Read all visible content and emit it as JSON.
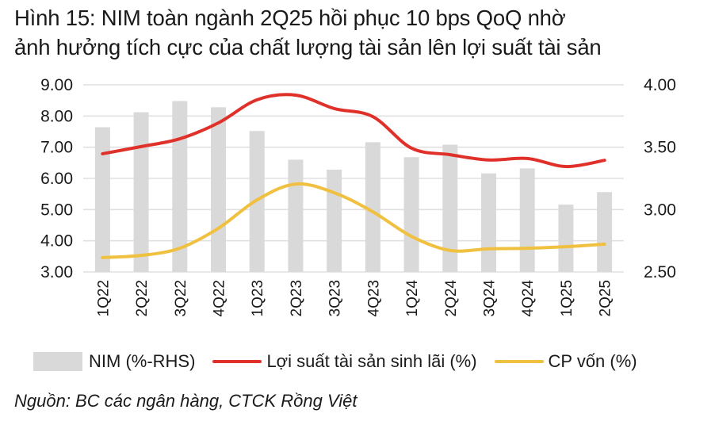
{
  "title": {
    "line1": "Hình 15: NIM toàn ngành 2Q25 hồi phục 10 bps QoQ nhờ",
    "line2": "ảnh hưởng tích cực của chất lượng tài sản lên lợi suất tài sản"
  },
  "legend": {
    "nim": "NIM (%-RHS)",
    "yield": "Lợi suất tài sản sinh lãi (%)",
    "cof": "CP vốn (%)"
  },
  "source": "Nguồn: BC các ngân hàng, CTCK Rồng Việt",
  "colors": {
    "bar": "#d9d9d9",
    "yield_line": "#e0302a",
    "cof_line": "#f0c040",
    "grid": "#e0e0e0"
  },
  "chart_data": {
    "type": "bar",
    "title": "Hình 15: NIM toàn ngành 2Q25 hồi phục 10 bps QoQ nhờ ảnh hưởng tích cực của chất lượng tài sản lên lợi suất tài sản",
    "categories": [
      "1Q22",
      "2Q22",
      "3Q22",
      "4Q22",
      "1Q23",
      "2Q23",
      "3Q23",
      "4Q23",
      "1Q24",
      "2Q24",
      "3Q24",
      "4Q24",
      "1Q25",
      "2Q25"
    ],
    "series": [
      {
        "name": "NIM (%-RHS)",
        "type": "bar",
        "axis": "right",
        "values": [
          3.66,
          3.78,
          3.87,
          3.82,
          3.63,
          3.4,
          3.32,
          3.54,
          3.42,
          3.52,
          3.29,
          3.33,
          3.04,
          3.14
        ]
      },
      {
        "name": "Lợi suất tài sản sinh lãi (%)",
        "type": "line",
        "axis": "left",
        "values": [
          6.79,
          7.02,
          7.27,
          7.78,
          8.52,
          8.67,
          8.24,
          7.98,
          6.97,
          6.76,
          6.59,
          6.64,
          6.38,
          6.58
        ]
      },
      {
        "name": "CP vốn (%)",
        "type": "line",
        "axis": "left",
        "values": [
          3.46,
          3.53,
          3.76,
          4.4,
          5.31,
          5.82,
          5.54,
          4.93,
          4.14,
          3.69,
          3.74,
          3.76,
          3.81,
          3.89
        ]
      }
    ],
    "xlabel": "",
    "ylabel": "",
    "ylim": [
      3.0,
      9.0
    ],
    "y2lim": [
      2.5,
      4.0
    ],
    "yticks": [
      "9.00",
      "8.00",
      "7.00",
      "6.00",
      "5.00",
      "4.00",
      "3.00"
    ],
    "y2ticks": [
      "4.00",
      "3.50",
      "3.00",
      "2.50"
    ],
    "grid": true,
    "legend_position": "bottom",
    "source": "Nguồn: BC các ngân hàng, CTCK Rồng Việt"
  }
}
